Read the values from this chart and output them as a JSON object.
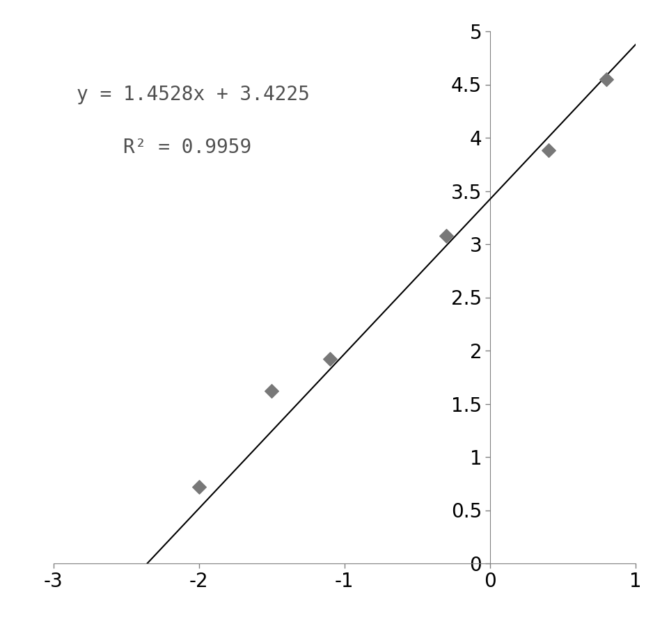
{
  "scatter_x": [
    -2.0,
    -1.5,
    -1.1,
    -0.3,
    0.4,
    0.8
  ],
  "scatter_y": [
    0.72,
    1.62,
    1.92,
    3.08,
    3.88,
    4.55
  ],
  "slope": 1.4528,
  "intercept": 3.4225,
  "r_squared": 0.9959,
  "equation_text": "y = 1.4528x + 3.4225",
  "r2_text": "R² = 0.9959",
  "xlim": [
    -3,
    1
  ],
  "ylim": [
    0,
    5
  ],
  "xticks": [
    -3,
    -2,
    -1,
    0,
    1
  ],
  "yticks": [
    0,
    0.5,
    1.0,
    1.5,
    2.0,
    2.5,
    3.0,
    3.5,
    4.0,
    4.5,
    5.0
  ],
  "marker_color": "#787878",
  "line_color": "#000000",
  "spine_color": "#808080",
  "background_color": "#ffffff",
  "text_color": "#505050",
  "annotation_fontsize": 20,
  "tick_fontsize": 20,
  "fig_width": 9.61,
  "fig_height": 9.0,
  "dpi": 100
}
